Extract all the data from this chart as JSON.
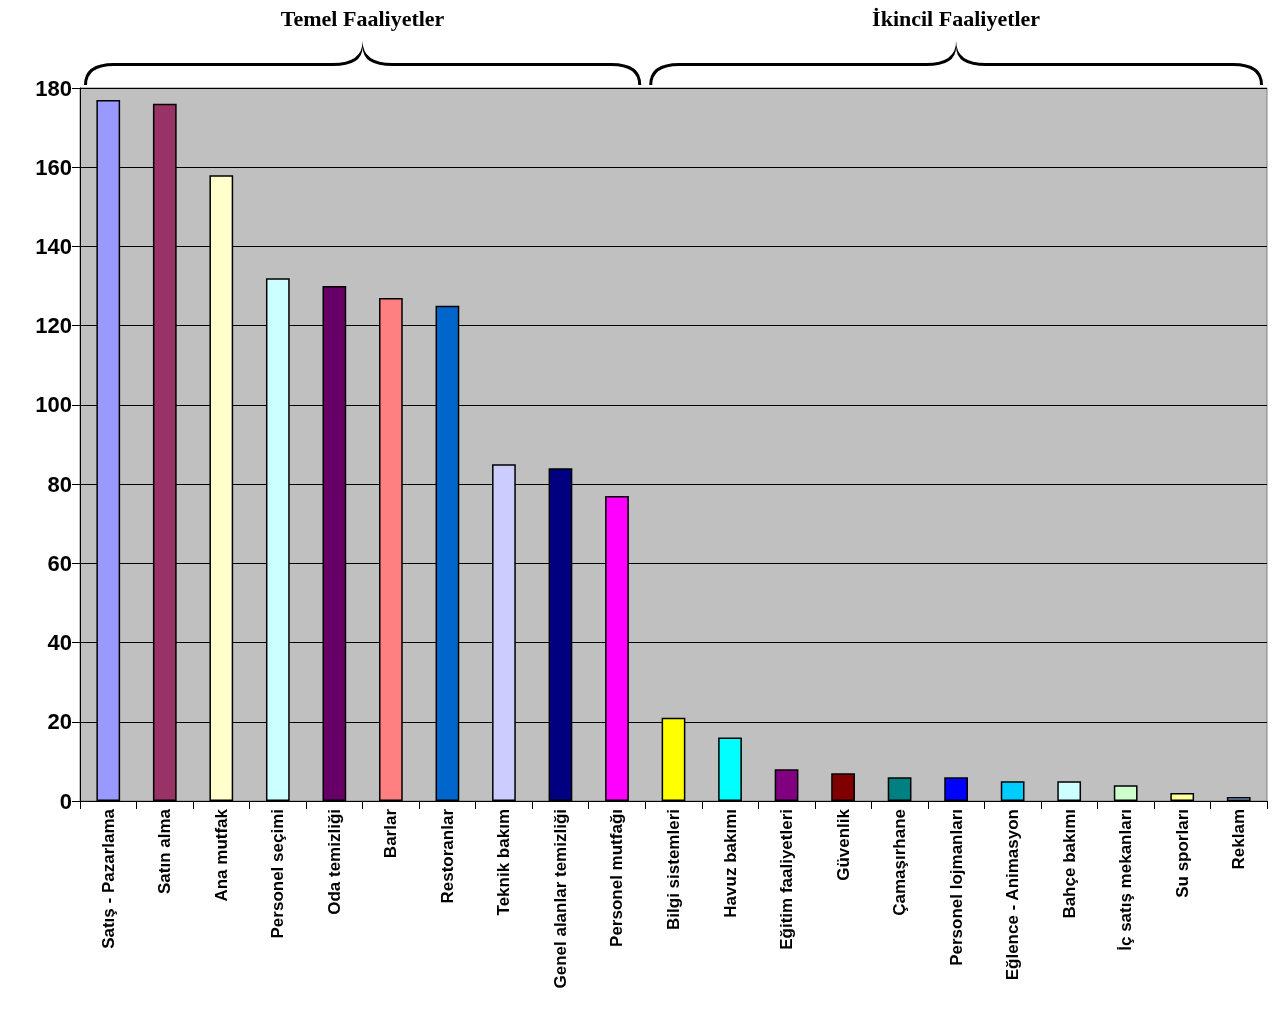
{
  "chart_data": {
    "type": "bar",
    "categories": [
      "Satış - Pazarlama",
      "Satın alma",
      "Ana mutfak",
      "Personel seçimi",
      "Oda temizliği",
      "Barlar",
      "Restoranlar",
      "Teknik bakım",
      "Genel alanlar temizliği",
      "Personel mutfağı",
      "Bilgi sistemleri",
      "Havuz bakımı",
      "Eğitim faaliyetleri",
      "Güvenlik",
      "Çamaşırhane",
      "Personel lojmanları",
      "Eğlence - Animasyon",
      "Bahçe bakımı",
      "İç satış mekanları",
      "Su sporları",
      "Reklam"
    ],
    "values": [
      177,
      176,
      158,
      132,
      130,
      127,
      125,
      85,
      84,
      77,
      21,
      16,
      8,
      7,
      6,
      6,
      5,
      5,
      4,
      2,
      1
    ],
    "colors": [
      "#9999ff",
      "#993366",
      "#ffffcc",
      "#ccffff",
      "#660066",
      "#ff8080",
      "#0066cc",
      "#ccccff",
      "#000080",
      "#ff00ff",
      "#ffff00",
      "#00ffff",
      "#800080",
      "#800000",
      "#008080",
      "#0000ff",
      "#00ccff",
      "#ccffff",
      "#ccffcc",
      "#ffff99",
      "#99ccff"
    ],
    "ylim": [
      0,
      180
    ],
    "yticks": [
      0,
      20,
      40,
      60,
      80,
      100,
      120,
      140,
      160,
      180
    ],
    "grid": "y",
    "annotations": [
      "Temel Faaliyetler",
      "İkincil Faaliyetler"
    ]
  }
}
